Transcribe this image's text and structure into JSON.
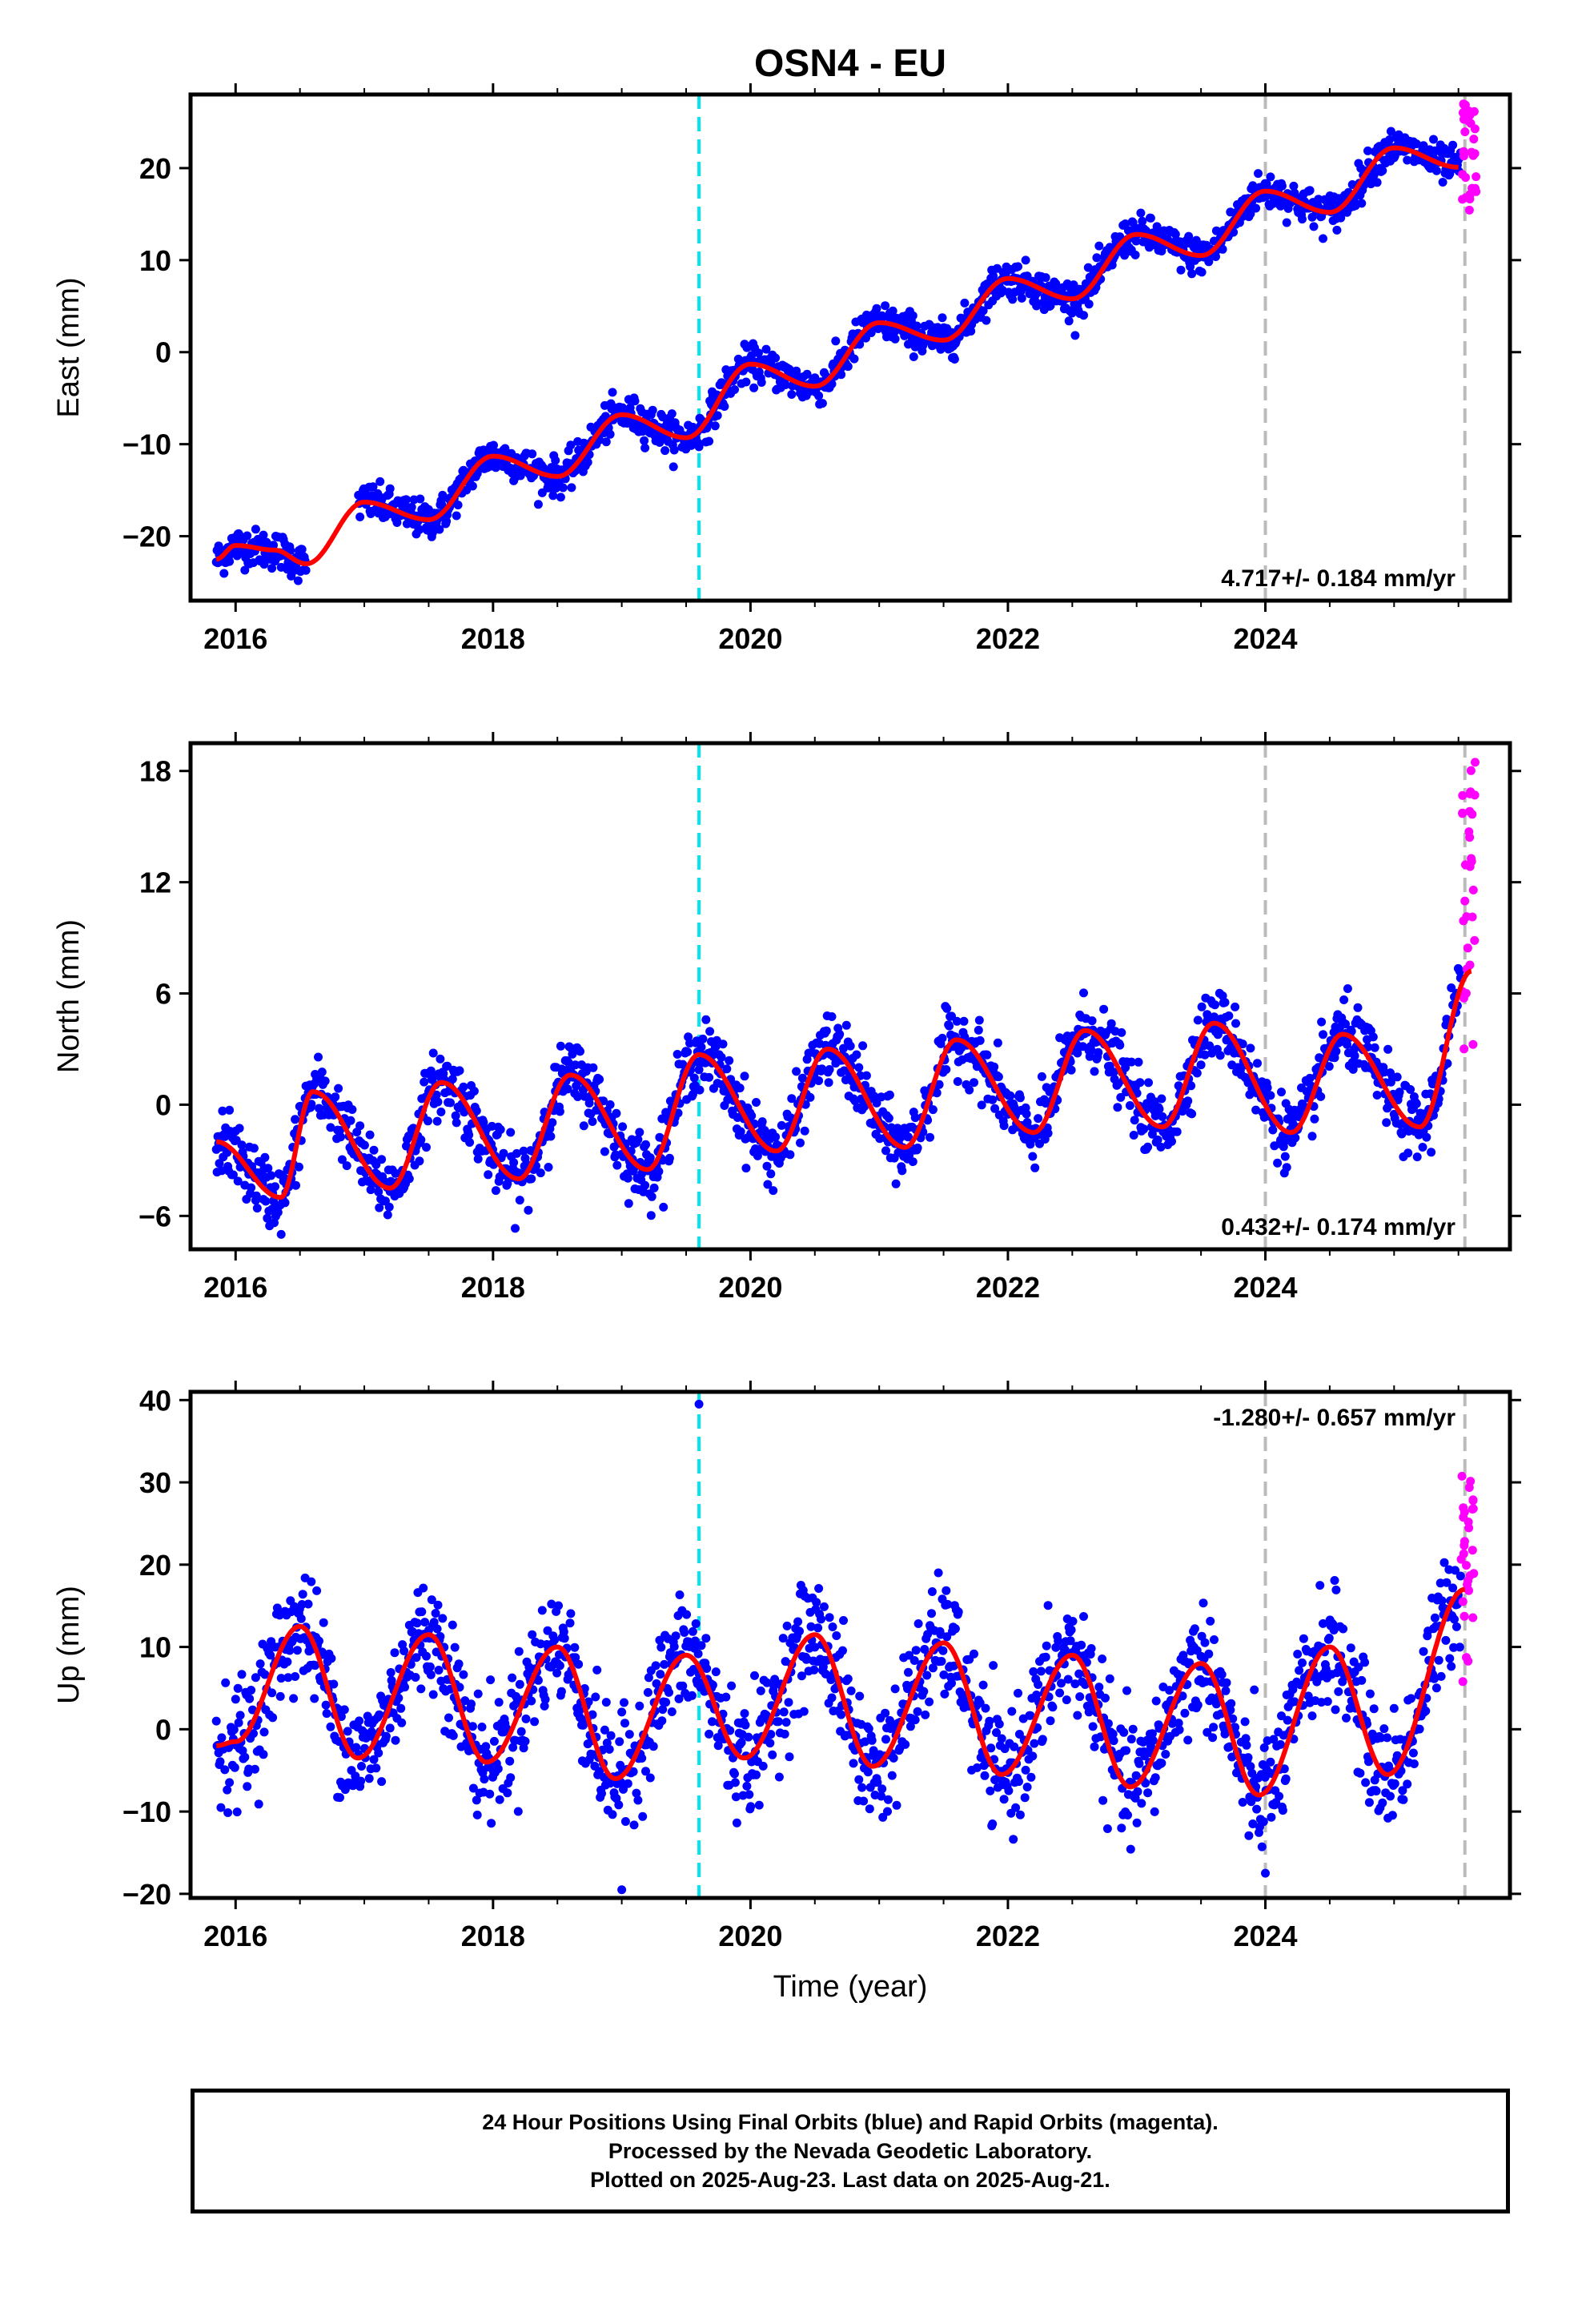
{
  "title": "OSN4 - EU",
  "colors": {
    "final_orbits": "#0000ff",
    "rapid_orbits": "#ff00ff",
    "model_fit": "#ff0000",
    "equipment_change": "#00e5ee",
    "other_offset": "#bbbbbb"
  },
  "xaxis": {
    "label": "Time (year)",
    "range": [
      2015.65,
      2025.9
    ],
    "ticks": [
      2016,
      2018,
      2020,
      2022,
      2024
    ]
  },
  "vertical_lines": [
    {
      "x": 2019.6,
      "color": "cyan",
      "style": "dashed"
    },
    {
      "x": 2024.0,
      "color": "gray",
      "style": "dashed"
    },
    {
      "x": 2025.55,
      "color": "gray",
      "style": "dashed"
    }
  ],
  "chart_data": [
    {
      "type": "scatter",
      "panel": "east",
      "ylabel": "East (mm)",
      "ylim": [
        -27,
        28
      ],
      "yticks": [
        -20,
        -10,
        0,
        10,
        20
      ],
      "rate_label": "4.717+/- 0.184 mm/yr",
      "rate_position": "bottom-right",
      "model": {
        "trend_rate": 4.717,
        "trend_offset": -2.0,
        "annual_amp": 1.2,
        "annual_phase": 2.1,
        "semiannual_amp": 0.3,
        "semiannual_phase": 0.5,
        "scatter_sd": 1.0,
        "segment_steps": [
          [
            2016.6,
            2017.0,
            3.0
          ]
        ]
      },
      "x": [
        2015.85,
        2016.0,
        2016.3,
        2016.55,
        2017.0,
        2017.5,
        2018.0,
        2018.5,
        2019.0,
        2019.5,
        2020.0,
        2020.5,
        2021.0,
        2021.5,
        2022.0,
        2022.5,
        2023.0,
        2023.5,
        2024.0,
        2024.5,
        2025.0,
        2025.5
      ],
      "fit": [
        -22.5,
        -21.0,
        -21.5,
        -23.0,
        -16.3,
        -18.2,
        -11.3,
        -13.5,
        -6.8,
        -9.3,
        -1.3,
        -3.7,
        3.2,
        1.3,
        8.0,
        5.8,
        12.8,
        10.5,
        17.5,
        15.2,
        22.2,
        20.1
      ],
      "rapid": {
        "x_range": [
          2025.52,
          2025.64
        ],
        "y_range": [
          15.0,
          27.5
        ]
      }
    },
    {
      "type": "scatter",
      "panel": "north",
      "ylabel": "North (mm)",
      "ylim": [
        -7.8,
        19.5
      ],
      "yticks": [
        -6,
        0,
        6,
        12,
        18
      ],
      "rate_label": "0.432+/- 0.174 mm/yr",
      "rate_position": "bottom-right",
      "model": {
        "trend_rate": 0.432,
        "trend_offset": -1.7,
        "annual_amp": 3.7,
        "annual_phase": 1.95,
        "semiannual_amp": 0.5,
        "semiannual_phase": 2.5,
        "scatter_sd": 0.9,
        "segment_steps": []
      },
      "x": [
        2015.85,
        2016.35,
        2016.6,
        2017.2,
        2017.6,
        2018.2,
        2018.6,
        2019.2,
        2019.6,
        2020.2,
        2020.6,
        2021.2,
        2021.6,
        2022.2,
        2022.6,
        2023.2,
        2023.6,
        2024.2,
        2024.6,
        2025.2,
        2025.6
      ],
      "fit": [
        -2.0,
        -5.0,
        0.7,
        -4.5,
        1.2,
        -4.0,
        1.6,
        -3.5,
        2.7,
        -2.5,
        3.0,
        -2.3,
        3.5,
        -1.5,
        4.0,
        -1.2,
        4.4,
        -1.5,
        3.8,
        -1.2,
        7.2
      ],
      "rapid": {
        "x_range": [
          2025.52,
          2025.64
        ],
        "y_range": [
          2.0,
          19.0
        ]
      }
    },
    {
      "type": "scatter",
      "panel": "up",
      "ylabel": "Up (mm)",
      "ylim": [
        -20.5,
        41
      ],
      "yticks": [
        -20,
        -10,
        0,
        10,
        20,
        30,
        40
      ],
      "rate_label": "-1.280+/- 0.657 mm/yr",
      "rate_position": "top-right",
      "model": {
        "trend_rate": -1.28,
        "trend_offset": 1.0,
        "annual_amp": 8.2,
        "annual_phase": 1.8,
        "semiannual_amp": 1.5,
        "semiannual_phase": 0.3,
        "scatter_sd": 3.5,
        "segment_steps": []
      },
      "x": [
        2015.85,
        2016.0,
        2016.5,
        2016.95,
        2017.5,
        2017.95,
        2018.5,
        2018.95,
        2019.5,
        2019.95,
        2020.5,
        2020.95,
        2021.5,
        2021.95,
        2022.5,
        2022.95,
        2023.5,
        2023.95,
        2024.5,
        2024.95,
        2025.55
      ],
      "fit": [
        -2.0,
        -1.5,
        12.5,
        -3.5,
        11.5,
        -4.0,
        10.0,
        -6.0,
        9.0,
        -3.5,
        11.5,
        -4.5,
        10.5,
        -5.5,
        9.0,
        -7.0,
        8.0,
        -8.0,
        10.0,
        -5.5,
        17.0
      ],
      "outliers": [
        [
          2019.6,
          39.5
        ],
        [
          2019.0,
          -19.5
        ],
        [
          2024.0,
          -17.5
        ]
      ],
      "rapid": {
        "x_range": [
          2025.52,
          2025.64
        ],
        "y_range": [
          -2.0,
          32.5
        ]
      }
    }
  ],
  "footer": {
    "line1": "24 Hour Positions Using Final Orbits (blue) and Rapid Orbits (magenta).",
    "line2": "Processed by the Nevada Geodetic Laboratory.",
    "line3": "Plotted on 2025-Aug-23. Last data on 2025-Aug-21."
  }
}
